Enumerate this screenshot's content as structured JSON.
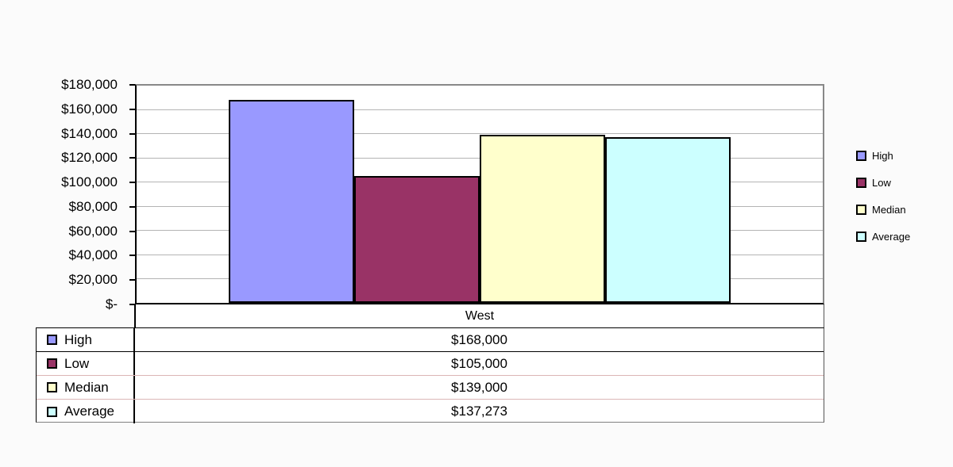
{
  "chart_data": {
    "type": "bar",
    "title": "",
    "xlabel": "",
    "ylabel": "",
    "categories": [
      "West"
    ],
    "series": [
      {
        "name": "High",
        "values": [
          168000
        ],
        "formatted": [
          "$168,000"
        ],
        "color": "#9999ff"
      },
      {
        "name": "Low",
        "values": [
          105000
        ],
        "formatted": [
          "$105,000"
        ],
        "color": "#993366"
      },
      {
        "name": "Median",
        "values": [
          139000
        ],
        "formatted": [
          "$139,000"
        ],
        "color": "#ffffcc"
      },
      {
        "name": "Average",
        "values": [
          137273
        ],
        "formatted": [
          "$137,273"
        ],
        "color": "#ccffff"
      }
    ],
    "ylim": [
      0,
      180000
    ],
    "ytick_step": 20000,
    "ytick_labels": [
      "$180,000",
      "$160,000",
      "$140,000",
      "$120,000",
      "$100,000",
      "$80,000",
      "$60,000",
      "$40,000",
      "$20,000",
      "$-"
    ],
    "grid": true,
    "legend_position": "right",
    "data_table_shown": true
  },
  "colors": {
    "gridline": "#b4b4b4",
    "plot_border_gray": "#888888",
    "axis_black": "#000000",
    "background": "#fbfbfb",
    "bar_border": "#000000"
  }
}
